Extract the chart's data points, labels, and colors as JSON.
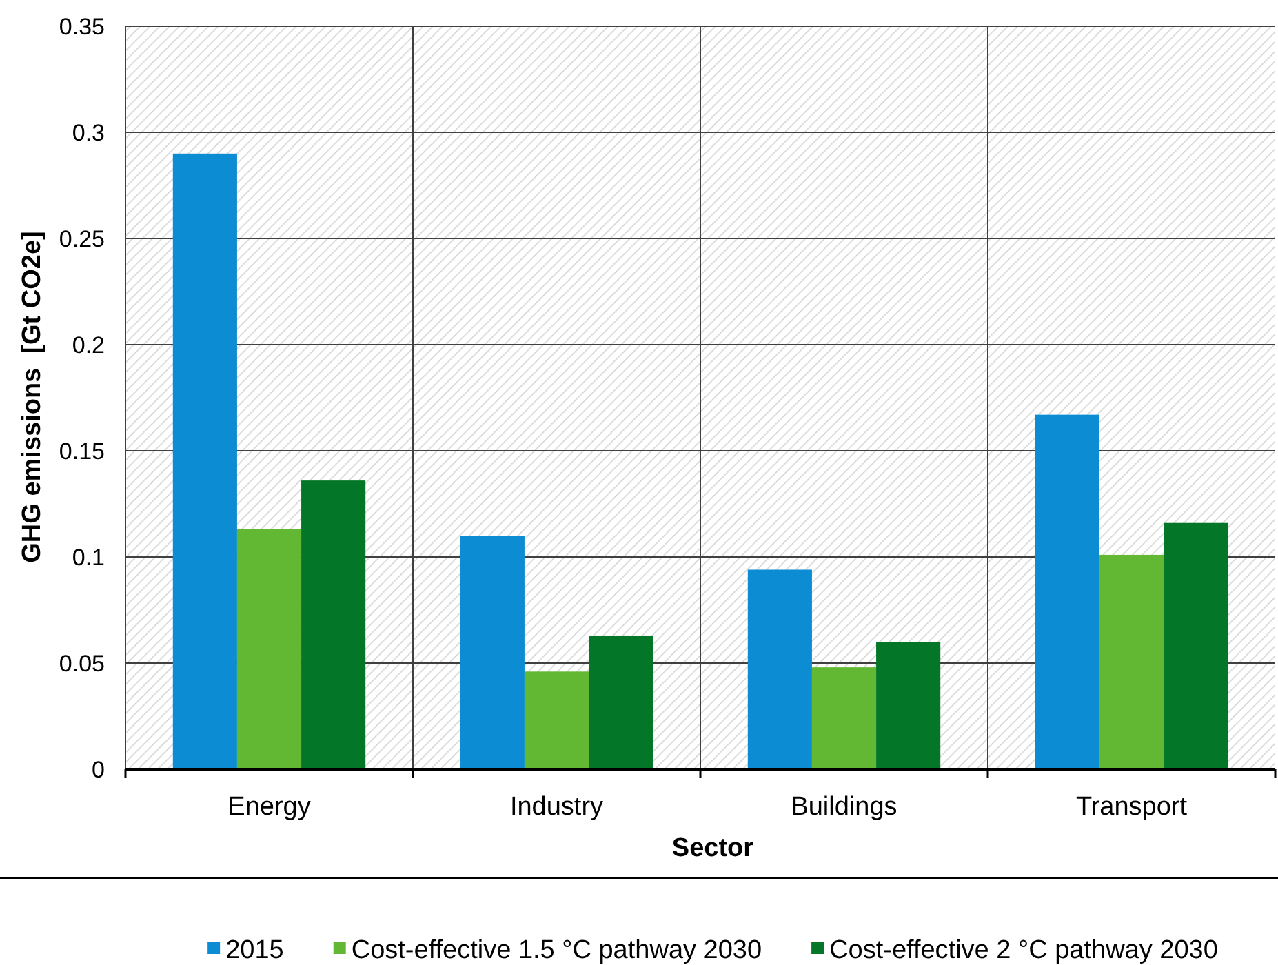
{
  "chart_data": {
    "type": "bar",
    "xlabel": "Sector",
    "ylabel": "GHG emissions  [Gt CO2e]",
    "categories": [
      "Energy",
      "Industry",
      "Buildings",
      "Transport"
    ],
    "series": [
      {
        "name": "2015",
        "color": "#0c8dd3",
        "values": [
          0.29,
          0.11,
          0.094,
          0.167
        ]
      },
      {
        "name": "Cost-effective 1.5 °C pathway 2030",
        "color": "#62b733",
        "values": [
          0.113,
          0.046,
          0.048,
          0.101
        ]
      },
      {
        "name": "Cost-effective 2 °C pathway 2030",
        "color": "#037627",
        "values": [
          0.136,
          0.063,
          0.06,
          0.116
        ]
      }
    ],
    "ylim": [
      0,
      0.35
    ],
    "yticks": [
      0,
      0.05,
      0.1,
      0.15,
      0.2,
      0.25,
      0.3,
      0.35
    ],
    "grid": true,
    "legend": "bottom"
  }
}
